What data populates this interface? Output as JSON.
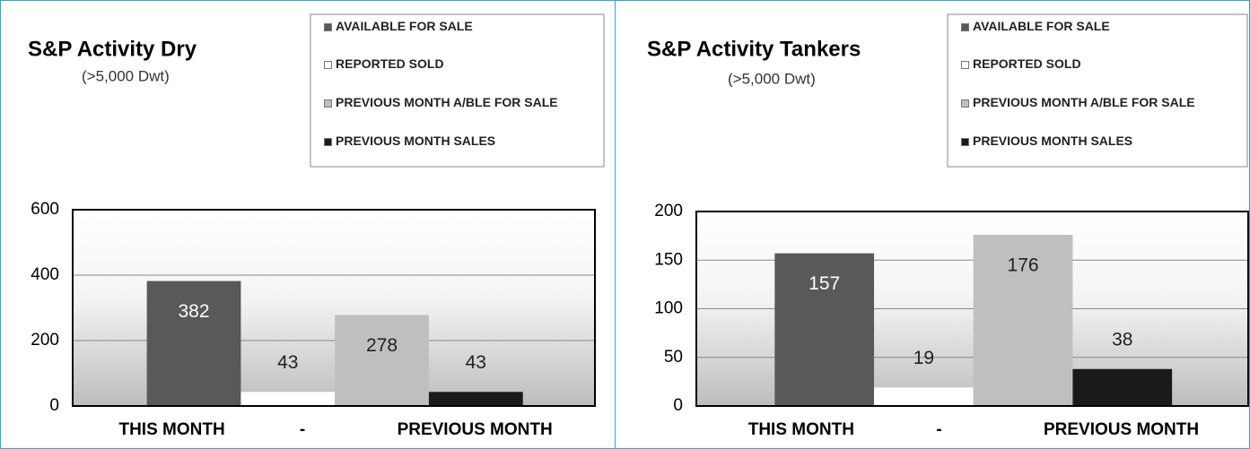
{
  "chart_data": [
    {
      "type": "bar",
      "title": "S&P Activity Dry",
      "subtitle": "(>5,000 Dwt)",
      "categories": [
        "AVAILABLE FOR SALE",
        "REPORTED SOLD",
        "PREVIOUS MONTH A/BLE FOR SALE",
        "PREVIOUS MONTH SALES"
      ],
      "values": [
        382,
        43,
        278,
        43
      ],
      "colors": [
        "#595959",
        "#ffffff",
        "#bfbfbf",
        "#1a1a1a"
      ],
      "x_labels": [
        "THIS MONTH",
        "-",
        "PREVIOUS MONTH"
      ],
      "ylim": [
        0,
        600
      ],
      "yticks": [
        0,
        200,
        400,
        600
      ],
      "grid": true,
      "legend": "top-right"
    },
    {
      "type": "bar",
      "title": "S&P Activity Tankers",
      "subtitle": "(>5,000 Dwt)",
      "categories": [
        "AVAILABLE FOR SALE",
        "REPORTED SOLD",
        "PREVIOUS MONTH A/BLE FOR SALE",
        "PREVIOUS MONTH SALES"
      ],
      "values": [
        157,
        19,
        176,
        38
      ],
      "colors": [
        "#595959",
        "#ffffff",
        "#bfbfbf",
        "#1a1a1a"
      ],
      "x_labels": [
        "THIS MONTH",
        "-",
        "PREVIOUS MONTH"
      ],
      "ylim": [
        0,
        200
      ],
      "yticks": [
        0,
        50,
        100,
        150,
        200
      ],
      "grid": true,
      "legend": "top-right"
    }
  ]
}
